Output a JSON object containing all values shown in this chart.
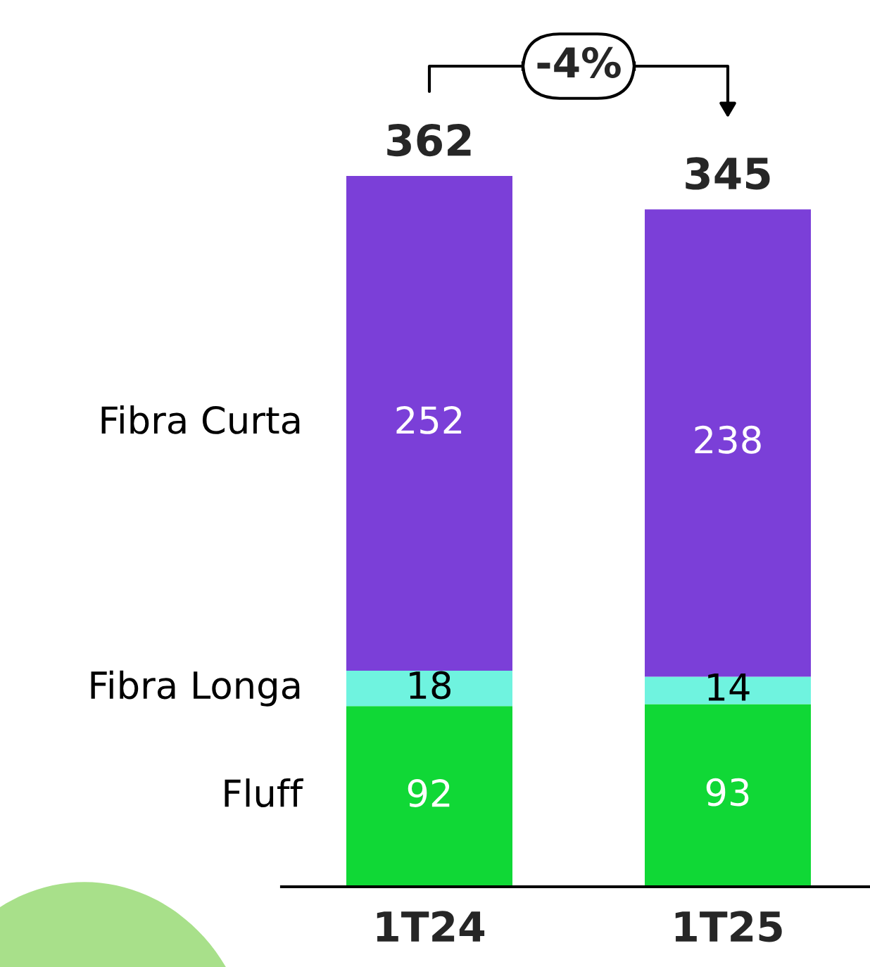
{
  "chart_data": {
    "type": "bar",
    "stacked": true,
    "data_labels": true,
    "legend": false,
    "grid": false,
    "categories": [
      "1T24",
      "1T25"
    ],
    "series": [
      {
        "name": "Fluff",
        "color": "#10d836",
        "values": [
          92,
          93
        ]
      },
      {
        "name": "Fibra Longa",
        "color": "#6ff3df",
        "values": [
          18,
          14
        ]
      },
      {
        "name": "Fibra Curta",
        "color": "#7b3fd8",
        "values": [
          252,
          238
        ]
      }
    ],
    "totals": [
      "362",
      "345"
    ],
    "annotations": [
      "-4%"
    ]
  }
}
